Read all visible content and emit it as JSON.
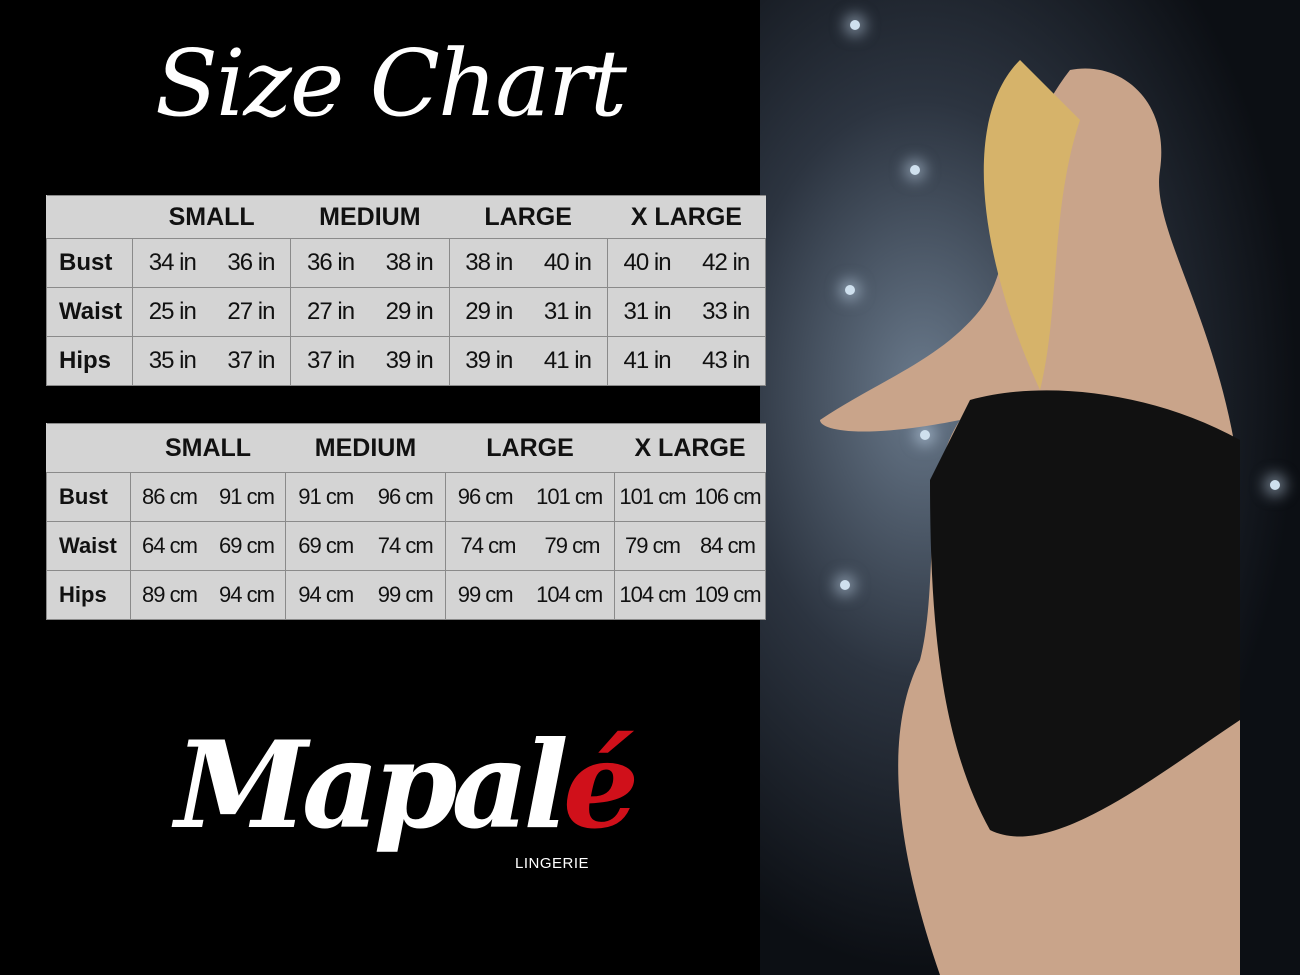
{
  "title": "Size Chart",
  "sizes": [
    "SMALL",
    "MEDIUM",
    "LARGE",
    "X LARGE"
  ],
  "inches": {
    "rows": [
      {
        "label": "Bust",
        "values": [
          "34 in",
          "36 in",
          "36 in",
          "38 in",
          "38 in",
          "40 in",
          "40 in",
          "42 in"
        ]
      },
      {
        "label": "Waist",
        "values": [
          "25 in",
          "27 in",
          "27 in",
          "29 in",
          "29 in",
          "31 in",
          "31 in",
          "33 in"
        ]
      },
      {
        "label": "Hips",
        "values": [
          "35 in",
          "37 in",
          "37 in",
          "39 in",
          "39 in",
          "41 in",
          "41 in",
          "43 in"
        ]
      }
    ]
  },
  "cm": {
    "rows": [
      {
        "label": "Bust",
        "values": [
          "86 cm",
          "91 cm",
          "91 cm",
          "96 cm",
          "96 cm",
          "101 cm",
          "101 cm",
          "106 cm"
        ]
      },
      {
        "label": "Waist",
        "values": [
          "64 cm",
          "69 cm",
          "69 cm",
          "74 cm",
          "74 cm",
          "79  cm",
          "79 cm",
          "84 cm"
        ]
      },
      {
        "label": "Hips",
        "values": [
          "89 cm",
          "94 cm",
          "94 cm",
          "99 cm",
          "99 cm",
          "104 cm",
          "104 cm",
          "109 cm"
        ]
      }
    ]
  },
  "logo": {
    "name": "Mapalé",
    "sub": "LINGERIE",
    "accent": "#d0101a"
  }
}
